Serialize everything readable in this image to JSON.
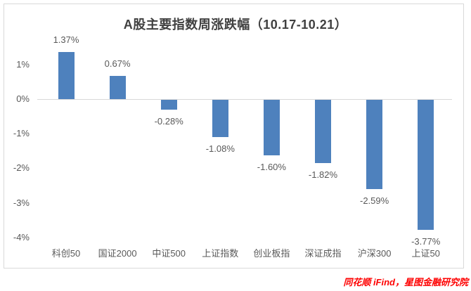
{
  "footer": {
    "source": "同花顺 iFind，星图金融研究院",
    "color": "#fe0000"
  },
  "chart_data": {
    "type": "bar",
    "title": "A股主要指数周涨跌幅（10.17-10.21）",
    "categories": [
      "科创50",
      "国证2000",
      "中证500",
      "上证指数",
      "创业板指",
      "深证成指",
      "沪深300",
      "上证50"
    ],
    "values": [
      1.37,
      0.67,
      -0.28,
      -1.08,
      -1.6,
      -1.82,
      -2.59,
      -3.77
    ],
    "data_labels": [
      "1.37%",
      "0.67%",
      "-0.28%",
      "-1.08%",
      "-1.60%",
      "-1.82%",
      "-2.59%",
      "-3.77%"
    ],
    "unit": "%",
    "yticks": [
      {
        "label": "1%",
        "value": 1
      },
      {
        "label": "0%",
        "value": 0
      },
      {
        "label": "-1%",
        "value": -1
      },
      {
        "label": "-2%",
        "value": -2
      },
      {
        "label": "-3%",
        "value": -3
      },
      {
        "label": "-4%",
        "value": -4
      }
    ],
    "ylim": [
      -4.3,
      1.6
    ],
    "grid": false,
    "legend": false,
    "bar_color": "#4e81bd",
    "axis_line_color": "#d9d9d9",
    "label_color": "#595959",
    "title_color": "#404040"
  }
}
